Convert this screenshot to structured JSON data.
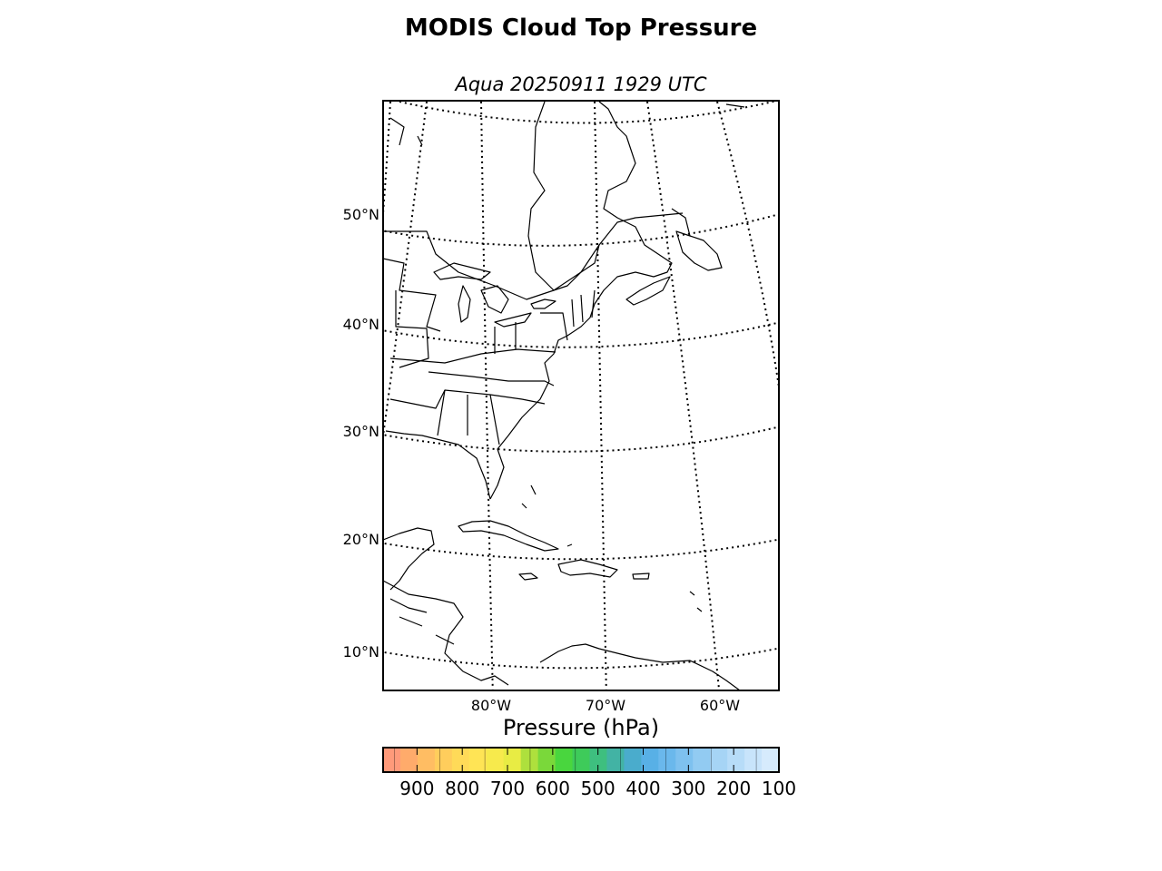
{
  "title": "MODIS Cloud Top Pressure",
  "subtitle": "Aqua 20250911 1929 UTC",
  "map": {
    "latitude_labels": [
      "50°N",
      "40°N",
      "30°N",
      "20°N",
      "10°N"
    ],
    "longitude_labels": [
      "80°W",
      "70°W",
      "60°W"
    ],
    "graticule_style": "dotted",
    "coastlines": true,
    "state_borders": true
  },
  "colorbar": {
    "label": "Pressure (hPa)",
    "tick_labels": [
      "900",
      "800",
      "700",
      "600",
      "500",
      "400",
      "300",
      "200",
      "100"
    ],
    "range_hPa": [
      975,
      100
    ],
    "colors": [
      "#ff9a7a",
      "#ffab6b",
      "#ffbd63",
      "#ffcd5c",
      "#ffda58",
      "#ffe455",
      "#f7ea4c",
      "#e8ec44",
      "#aee03d",
      "#7ad83a",
      "#49d63e",
      "#3ecb5a",
      "#3ebf7f",
      "#42b3a4",
      "#4aaccc",
      "#58b0e6",
      "#6ab8ec",
      "#7ec1ef",
      "#92cbf2",
      "#a6d4f5",
      "#b7dcf8",
      "#c8e4fb",
      "#d6ebfd"
    ]
  }
}
